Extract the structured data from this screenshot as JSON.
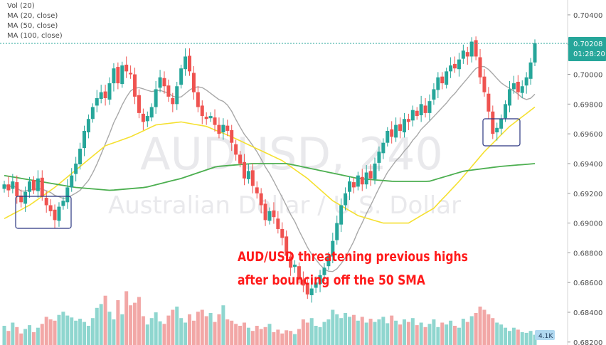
{
  "legend": {
    "vol": "Vol (20)",
    "ma20": "MA (20, close)",
    "ma50": "MA (50, close)",
    "ma100": "MA (100, close)"
  },
  "watermark": {
    "symbol": "AUDUSD, 240",
    "description": "Australian Dollar / U.S. Dollar"
  },
  "annotation": {
    "line1": "AUD/USD threatening previous highs",
    "line2": "after bouncing off the 50 SMA"
  },
  "price_tag": {
    "price": "0.70208",
    "countdown": "01:28:20"
  },
  "volume_badge": "4.1K",
  "colors": {
    "up": "#26a69a",
    "down": "#ef5350",
    "vol_up": "#8fd6cf",
    "vol_down": "#f2a7a6",
    "ma20": "#a8a8a8",
    "ma50": "#f5e030",
    "ma100": "#4caf50",
    "annotation": "#ff1a1a",
    "box": "#2a3580",
    "price_tag": "#26a69a"
  },
  "chart_data": {
    "type": "candlestick",
    "y_axis": {
      "ticks": [
        "0.70400",
        "0.70200",
        "0.70000",
        "0.69800",
        "0.69600",
        "0.69400",
        "0.69200",
        "0.69000",
        "0.68800",
        "0.68600",
        "0.68400",
        "0.68200"
      ],
      "range": [
        0.6818,
        0.705
      ]
    },
    "current_price": 0.70208,
    "close": [
      0.6926,
      0.6922,
      0.6928,
      0.6918,
      0.6914,
      0.6921,
      0.6928,
      0.6922,
      0.693,
      0.6918,
      0.6912,
      0.6908,
      0.6902,
      0.6911,
      0.6915,
      0.6924,
      0.6932,
      0.694,
      0.695,
      0.6962,
      0.697,
      0.6978,
      0.6984,
      0.6988,
      0.6984,
      0.6994,
      0.7004,
      0.6994,
      0.7006,
      0.7002,
      0.7,
      0.6985,
      0.6974,
      0.6968,
      0.6972,
      0.6978,
      0.699,
      0.6998,
      0.6992,
      0.6985,
      0.698,
      0.6992,
      0.7004,
      0.7012,
      0.7002,
      0.6988,
      0.6978,
      0.6972,
      0.697,
      0.6972,
      0.6966,
      0.696,
      0.6966,
      0.6962,
      0.6954,
      0.6946,
      0.694,
      0.693,
      0.6935,
      0.6925,
      0.692,
      0.6912,
      0.6902,
      0.6908,
      0.6904,
      0.6896,
      0.689,
      0.6878,
      0.687,
      0.6872,
      0.6862,
      0.6858,
      0.6852,
      0.6856,
      0.686,
      0.6865,
      0.687,
      0.6878,
      0.6888,
      0.69,
      0.6912,
      0.692,
      0.6928,
      0.6924,
      0.6932,
      0.6926,
      0.6934,
      0.693,
      0.694,
      0.6948,
      0.6954,
      0.6962,
      0.6958,
      0.6966,
      0.6962,
      0.697,
      0.6968,
      0.6976,
      0.6972,
      0.698,
      0.6974,
      0.6982,
      0.699,
      0.6998,
      0.6994,
      0.7002,
      0.7006,
      0.7004,
      0.701,
      0.7016,
      0.7012,
      0.7022,
      0.7012,
      0.6998,
      0.6988,
      0.6975,
      0.696,
      0.6964,
      0.697,
      0.698,
      0.699,
      0.6994,
      0.6988,
      0.6992,
      0.6998,
      0.7008,
      0.7021
    ],
    "volume": [
      0.3,
      0.22,
      0.35,
      0.28,
      0.18,
      0.25,
      0.31,
      0.2,
      0.27,
      0.33,
      0.44,
      0.4,
      0.38,
      0.47,
      0.52,
      0.46,
      0.43,
      0.38,
      0.41,
      0.36,
      0.3,
      0.42,
      0.58,
      0.64,
      0.77,
      0.52,
      0.4,
      0.7,
      0.48,
      0.84,
      0.62,
      0.66,
      0.75,
      0.45,
      0.32,
      0.42,
      0.51,
      0.37,
      0.33,
      0.46,
      0.55,
      0.6,
      0.42,
      0.35,
      0.48,
      0.38,
      0.52,
      0.55,
      0.45,
      0.5,
      0.36,
      0.48,
      0.62,
      0.4,
      0.38,
      0.33,
      0.3,
      0.35,
      0.27,
      0.22,
      0.3,
      0.25,
      0.28,
      0.33,
      0.2,
      0.24,
      0.18,
      0.23,
      0.22,
      0.17,
      0.25,
      0.4,
      0.35,
      0.42,
      0.3,
      0.28,
      0.36,
      0.4,
      0.55,
      0.48,
      0.42,
      0.5,
      0.44,
      0.47,
      0.38,
      0.44,
      0.35,
      0.41,
      0.36,
      0.4,
      0.44,
      0.34,
      0.46,
      0.38,
      0.32,
      0.4,
      0.36,
      0.42,
      0.31,
      0.35,
      0.28,
      0.33,
      0.4,
      0.28,
      0.35,
      0.32,
      0.38,
      0.3,
      0.27,
      0.41,
      0.36,
      0.45,
      0.5,
      0.6,
      0.55,
      0.48,
      0.42,
      0.35,
      0.32,
      0.27,
      0.22,
      0.27,
      0.24,
      0.2,
      0.19,
      0.22,
      0.16
    ],
    "series": [
      {
        "name": "MA (20, close)"
      },
      {
        "name": "MA (50, close)"
      },
      {
        "name": "MA (100, close)"
      }
    ],
    "ma50_start": [
      0.6903,
      0.6912,
      0.6924,
      0.6938,
      0.6952,
      0.6958,
      0.6966,
      0.6968,
      0.6965,
      0.6958,
      0.695,
      0.6942,
      0.693,
      0.6915,
      0.6905,
      0.69,
      0.69,
      0.691,
      0.6928,
      0.6948,
      0.6965,
      0.6978
    ],
    "ma100_start": [
      0.6932,
      0.6928,
      0.6924,
      0.6922,
      0.6924,
      0.693,
      0.6938,
      0.694,
      0.694,
      0.6935,
      0.693,
      0.6928,
      0.6928,
      0.6935,
      0.6938,
      0.694
    ]
  }
}
